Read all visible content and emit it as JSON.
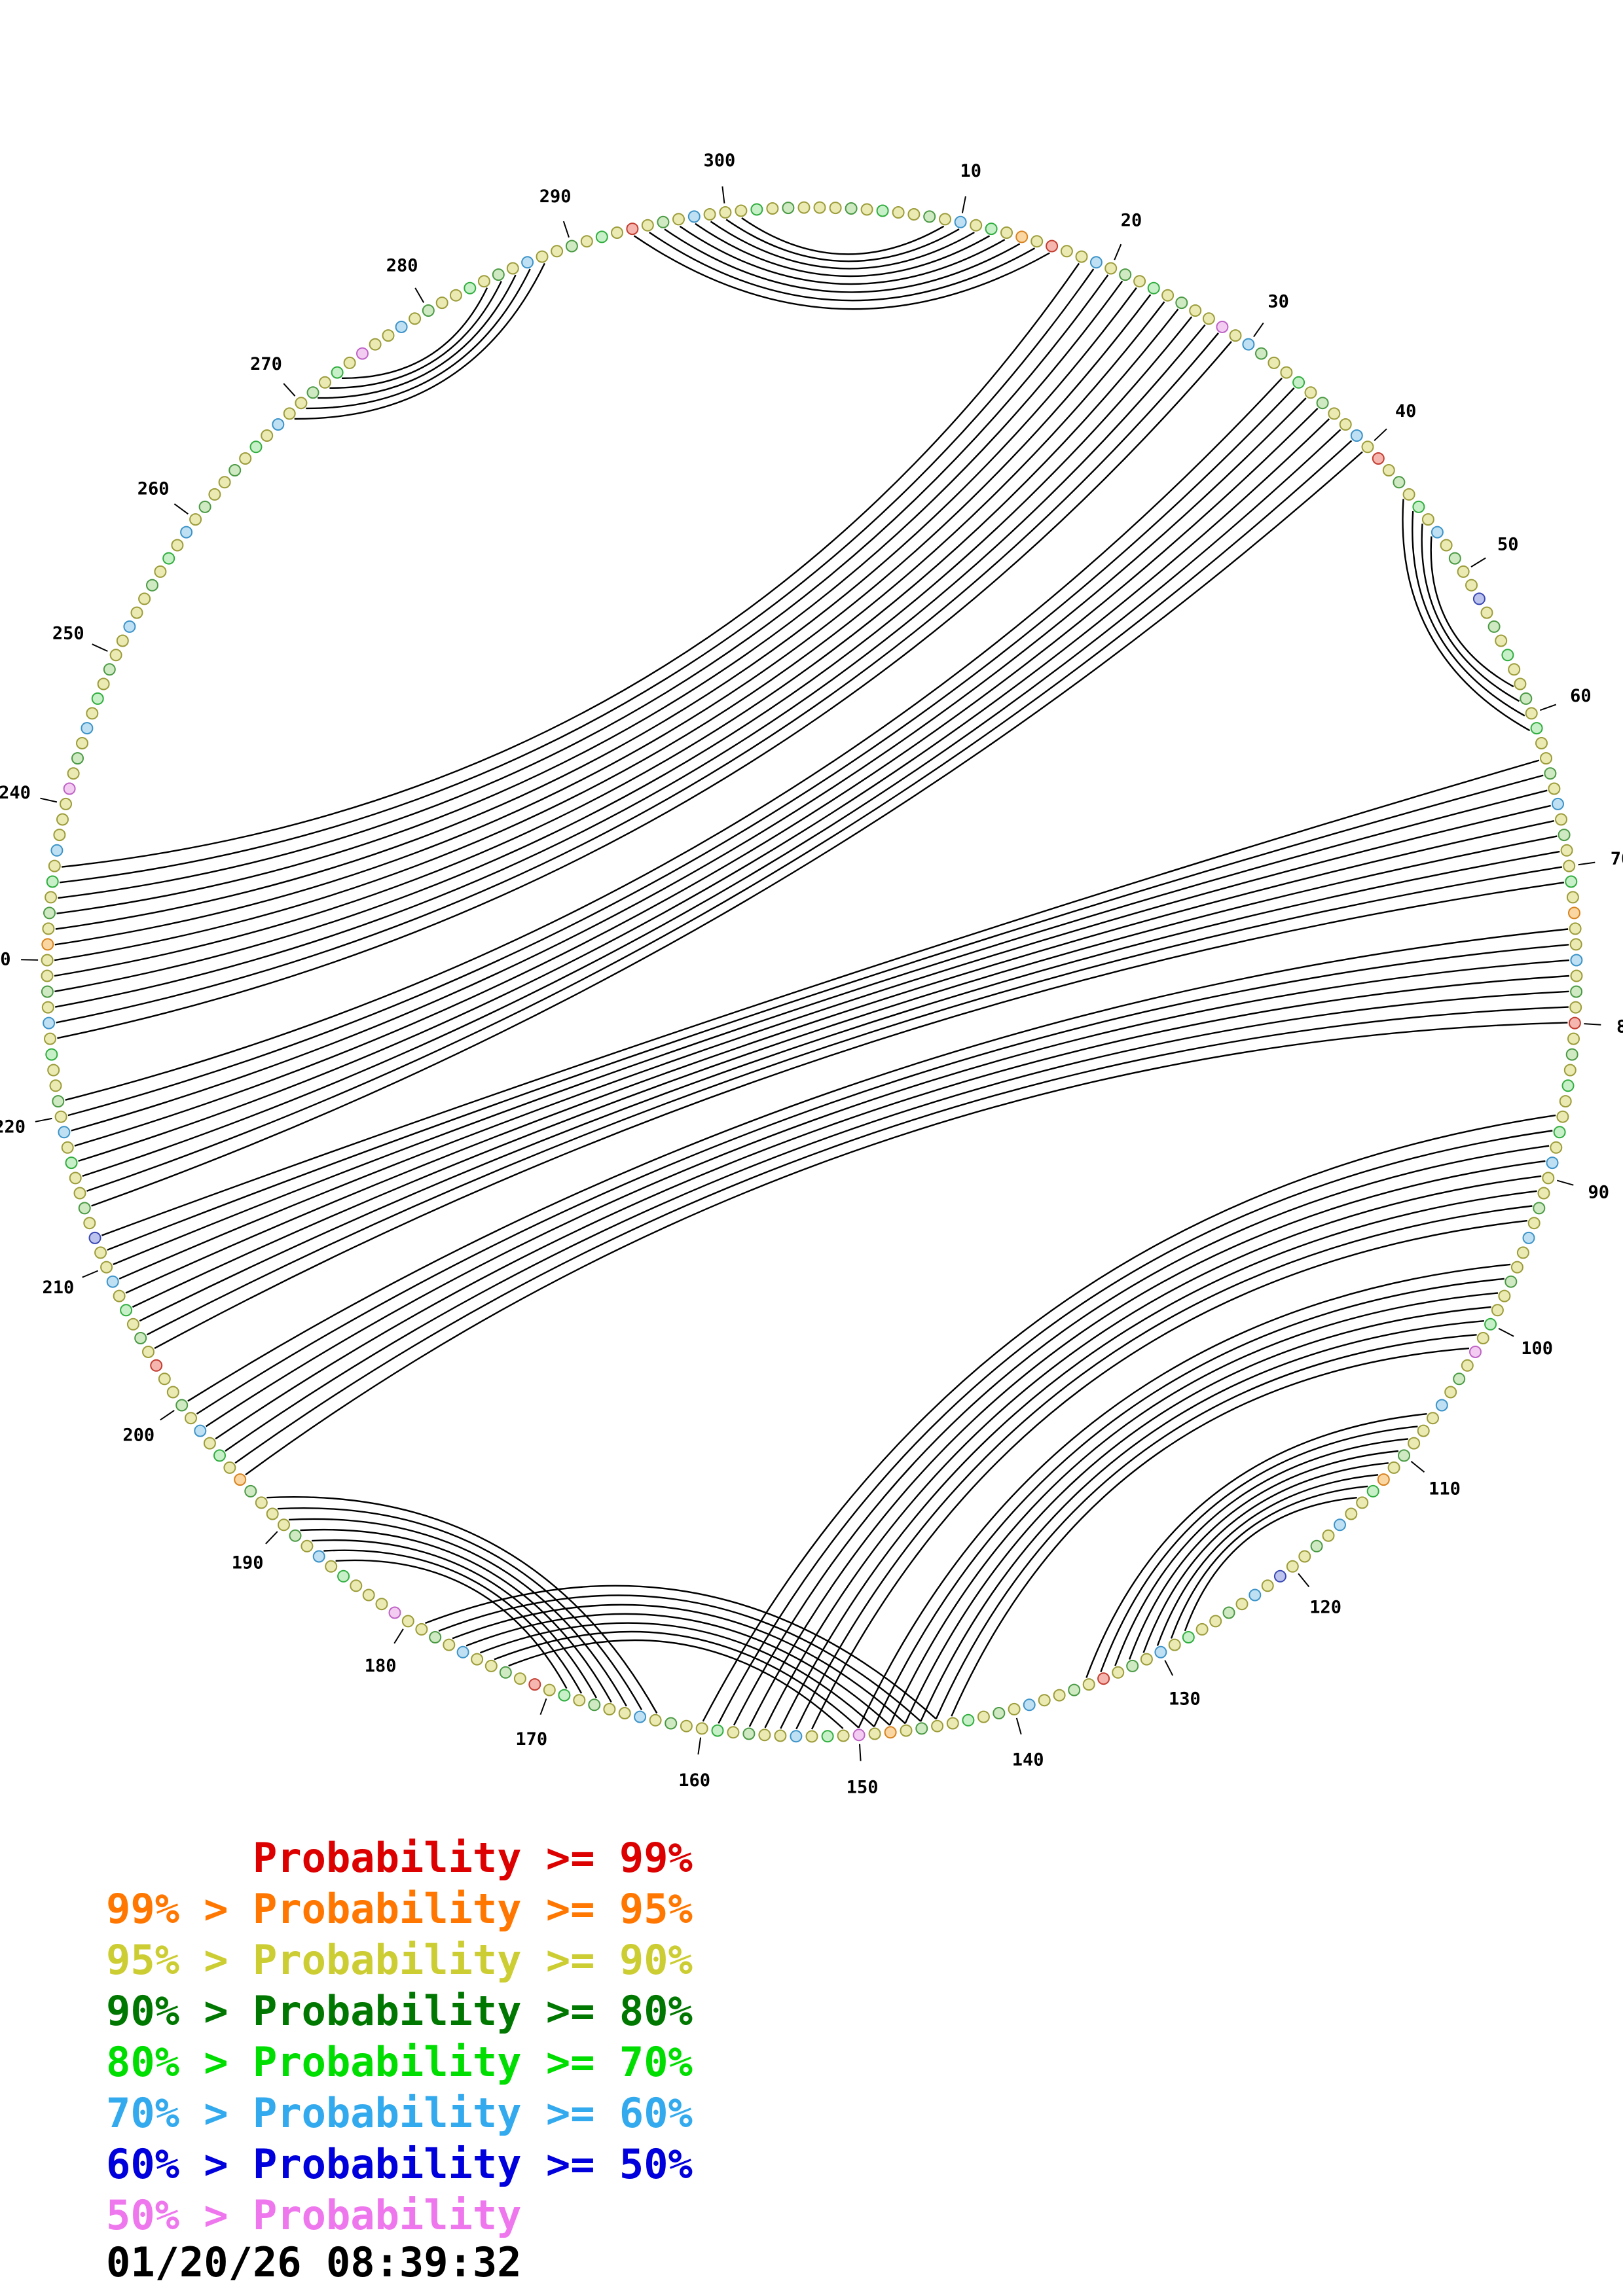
{
  "chart_data": {
    "type": "circular-arc-diagram",
    "sequence_length": 305,
    "tick_interval": 10,
    "tick_max": 300,
    "arc_color": "#000000",
    "helices": [
      [
        294,
        16,
        8
      ],
      [
        269,
        288,
        5
      ],
      [
        44,
        61,
        4
      ],
      [
        18,
        236,
        12
      ],
      [
        33,
        221,
        8
      ],
      [
        63,
        212,
        9
      ],
      [
        74,
        200,
        7
      ],
      [
        86,
        160,
        8
      ],
      [
        96,
        150,
        7
      ],
      [
        107,
        135,
        8
      ],
      [
        163,
        192,
        7
      ],
      [
        145,
        179,
        7
      ]
    ],
    "dot_palette": {
      "0": {
        "fill": "#f4b6ae",
        "stroke": "#c43c30"
      },
      "1": {
        "fill": "#fad7a2",
        "stroke": "#d8821e"
      },
      "2": {
        "fill": "#eaeab2",
        "stroke": "#9c9c3a"
      },
      "3": {
        "fill": "#cfe9c2",
        "stroke": "#4a9a44"
      },
      "4": {
        "fill": "#c8f0c8",
        "stroke": "#2fae3e"
      },
      "5": {
        "fill": "#bfe0f2",
        "stroke": "#3b93c9"
      },
      "6": {
        "fill": "#bcc3ec",
        "stroke": "#3947b4"
      },
      "7": {
        "fill": "#f3cdf1",
        "stroke": "#bf62c6"
      }
    },
    "dot_color_classes": "2232422325242120225232423227253224232252023242523226232422324223252322421225232023242242522325223224272325222321422523226252322425232023225232422321272425223242232522324202322523227222425232223124252322023242522623224252322425232212324252227232524232252232425232232425223242722523224232522324202325222423",
    "legend": [
      {
        "text": "      Probability >= 99%",
        "color": "#dd0000"
      },
      {
        "text": "99% > Probability >= 95%",
        "color": "#ff7700"
      },
      {
        "text": "95% > Probability >= 90%",
        "color": "#cccc33"
      },
      {
        "text": "90% > Probability >= 80%",
        "color": "#007700"
      },
      {
        "text": "80% > Probability >= 70%",
        "color": "#00dd00"
      },
      {
        "text": "70% > Probability >= 60%",
        "color": "#33aaee"
      },
      {
        "text": "60% > Probability >= 50%",
        "color": "#0000dd"
      },
      {
        "text": "50% > Probability",
        "color": "#ee77ee"
      }
    ],
    "timestamp": "01/20/26 08:39:32"
  }
}
